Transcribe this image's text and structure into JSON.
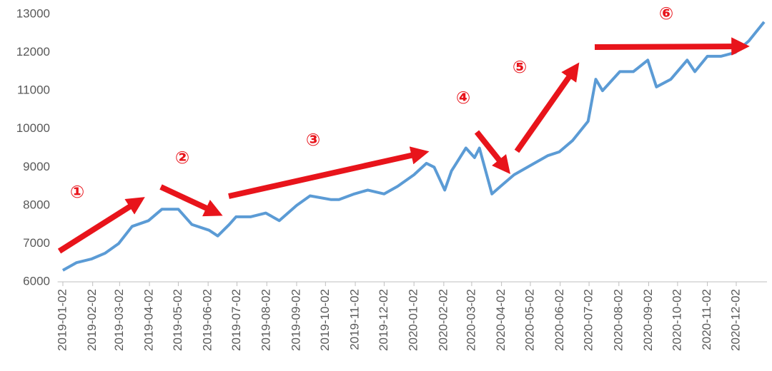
{
  "chart_data": {
    "type": "line",
    "annotations": [
      "①",
      "②",
      "③",
      "④",
      "⑤",
      "⑥"
    ],
    "x": [
      "2019-01-02",
      "2019-01-16",
      "2019-02-01",
      "2019-02-15",
      "2019-03-01",
      "2019-03-15",
      "2019-04-01",
      "2019-04-15",
      "2019-05-02",
      "2019-05-16",
      "2019-06-03",
      "2019-06-12",
      "2019-06-24",
      "2019-07-01",
      "2019-07-16",
      "2019-08-01",
      "2019-08-15",
      "2019-09-02",
      "2019-09-16",
      "2019-10-08",
      "2019-10-16",
      "2019-11-01",
      "2019-11-15",
      "2019-12-02",
      "2019-12-16",
      "2020-01-02",
      "2020-01-15",
      "2020-01-23",
      "2020-02-03",
      "2020-02-10",
      "2020-02-25",
      "2020-03-05",
      "2020-03-10",
      "2020-03-23",
      "2020-04-01",
      "2020-04-15",
      "2020-05-06",
      "2020-05-20",
      "2020-06-01",
      "2020-06-15",
      "2020-07-01",
      "2020-07-09",
      "2020-07-16",
      "2020-08-03",
      "2020-08-17",
      "2020-09-01",
      "2020-09-10",
      "2020-09-25",
      "2020-10-12",
      "2020-10-20",
      "2020-11-02",
      "2020-11-16",
      "2020-12-01",
      "2020-12-15",
      "2020-12-31"
    ],
    "series": [
      {
        "color": "#5b9bd5",
        "values": [
          6300,
          6500,
          6600,
          6750,
          7000,
          7450,
          7600,
          7900,
          7900,
          7500,
          7350,
          7200,
          7500,
          7700,
          7700,
          7800,
          7600,
          8000,
          8250,
          8150,
          8150,
          8300,
          8400,
          8300,
          8500,
          8800,
          9100,
          9000,
          8400,
          8900,
          9500,
          9250,
          9500,
          8300,
          8500,
          8800,
          9100,
          9300,
          9400,
          9700,
          10200,
          11300,
          11000,
          11500,
          11500,
          11800,
          11100,
          11300,
          11800,
          11500,
          11900,
          11900,
          12000,
          12300,
          12800
        ]
      }
    ],
    "xlim": [
      "2019-01-01",
      "2020-12-31"
    ],
    "xticks": [
      "2019-01-02",
      "2019-02-02",
      "2019-03-02",
      "2019-04-02",
      "2019-05-02",
      "2019-06-02",
      "2019-07-02",
      "2019-08-02",
      "2019-09-02",
      "2019-10-02",
      "2019-11-02",
      "2019-12-02",
      "2020-01-02",
      "2020-02-02",
      "2020-03-02",
      "2020-04-02",
      "2020-05-02",
      "2020-06-02",
      "2020-07-02",
      "2020-08-02",
      "2020-09-02",
      "2020-10-02",
      "2020-11-02",
      "2020-12-02"
    ],
    "ylim": [
      6000,
      13000
    ],
    "yticks": [
      6000,
      7000,
      8000,
      9000,
      10000,
      11000,
      12000,
      13000
    ],
    "grid": false
  }
}
